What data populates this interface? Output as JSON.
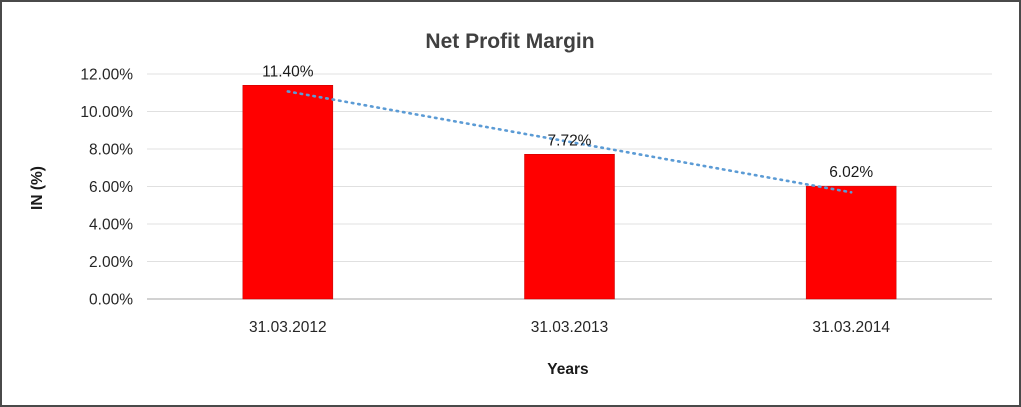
{
  "chart_data": {
    "type": "bar",
    "title": "Net Profit Margin",
    "xlabel": "Years",
    "ylabel": "IN (%)",
    "categories": [
      "31.03.2012",
      "31.03.2013",
      "31.03.2014"
    ],
    "values": [
      11.4,
      7.72,
      6.02
    ],
    "data_labels": [
      "11.40%",
      "7.72%",
      "6.02%"
    ],
    "y_ticks": [
      "12.00%",
      "10.00%",
      "8.00%",
      "6.00%",
      "4.00%",
      "2.00%",
      "0.00%"
    ],
    "ylim": [
      0,
      12
    ],
    "grid": true,
    "legend": "none",
    "bar_color": "#FF0000",
    "bar_border_color": "#C00000",
    "gridline_color": "#E0E0E0",
    "axis_line_color": "#A6A6A6",
    "title_color": "#404040",
    "text_color": "#262626",
    "trendline": {
      "type": "linear",
      "style": "dotted",
      "color": "#5B9BD5",
      "start_value": 11.07,
      "end_value": 5.69
    }
  }
}
